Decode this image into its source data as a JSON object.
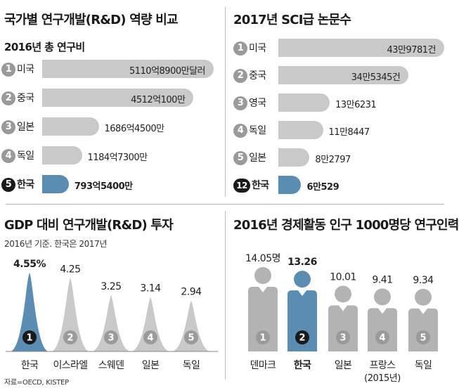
{
  "chart_data": [
    {
      "type": "bar",
      "title": "국가별 연구개발(R&D) 역량 비교",
      "subtitle": "2016년 총 연구비",
      "categories": [
        {
          "rank": "1",
          "name": "미국",
          "label": "5110억8900만달러",
          "value": 511089
        },
        {
          "rank": "2",
          "name": "중국",
          "label": "4512억100만",
          "value": 451201
        },
        {
          "rank": "3",
          "name": "일본",
          "label": "1686억4500만",
          "value": 168645
        },
        {
          "rank": "4",
          "name": "독일",
          "label": "1184억7300만",
          "value": 118473
        },
        {
          "rank": "5",
          "name": "한국",
          "label": "793억5400만",
          "value": 79354,
          "highlight": true
        }
      ]
    },
    {
      "type": "bar",
      "title": "2017년 SCI급 논문수",
      "categories": [
        {
          "rank": "1",
          "name": "미국",
          "label": "43만9781건",
          "value": 439781
        },
        {
          "rank": "2",
          "name": "중국",
          "label": "34만5345건",
          "value": 345345
        },
        {
          "rank": "3",
          "name": "영국",
          "label": "13만6231",
          "value": 136231
        },
        {
          "rank": "4",
          "name": "독일",
          "label": "11만8447",
          "value": 118447
        },
        {
          "rank": "5",
          "name": "일본",
          "label": "8만2797",
          "value": 82797
        },
        {
          "rank": "12",
          "name": "한국",
          "label": "6만529",
          "value": 60529,
          "highlight": true
        }
      ]
    },
    {
      "type": "bar",
      "title": "GDP 대비 연구개발(R&D) 투자",
      "note": "2016년 기준. 한국은 2017년",
      "categories": [
        {
          "rank": "1",
          "name": "한국",
          "label": "4.55%",
          "value": 4.55,
          "highlight": true
        },
        {
          "rank": "2",
          "name": "이스라엘",
          "label": "4.25",
          "value": 4.25
        },
        {
          "rank": "3",
          "name": "스웨덴",
          "label": "3.25",
          "value": 3.25
        },
        {
          "rank": "4",
          "name": "일본",
          "label": "3.14",
          "value": 3.14
        },
        {
          "rank": "5",
          "name": "독일",
          "label": "2.94",
          "value": 2.94
        }
      ]
    },
    {
      "type": "bar",
      "title": "2016년 경제활동 인구 1000명당 연구인력",
      "categories": [
        {
          "rank": "1",
          "name": "덴마크",
          "label": "14.05명",
          "value": 14.05
        },
        {
          "rank": "2",
          "name": "한국",
          "label": "13.26",
          "value": 13.26,
          "highlight": true
        },
        {
          "rank": "3",
          "name": "일본",
          "label": "10.01",
          "value": 10.01
        },
        {
          "rank": "4",
          "name": "프랑스",
          "sub": "(2015년)",
          "label": "9.41",
          "value": 9.41
        },
        {
          "rank": "5",
          "name": "독일",
          "label": "9.34",
          "value": 9.34
        }
      ]
    }
  ],
  "source": "자료=OECD, KISTEP",
  "colors": {
    "bar": "#c9c9c9",
    "highlight": "#5b8db3",
    "badge": "#9a9a9a",
    "badge_dark": "#1a1a1a",
    "person": "#b3b3b3"
  }
}
